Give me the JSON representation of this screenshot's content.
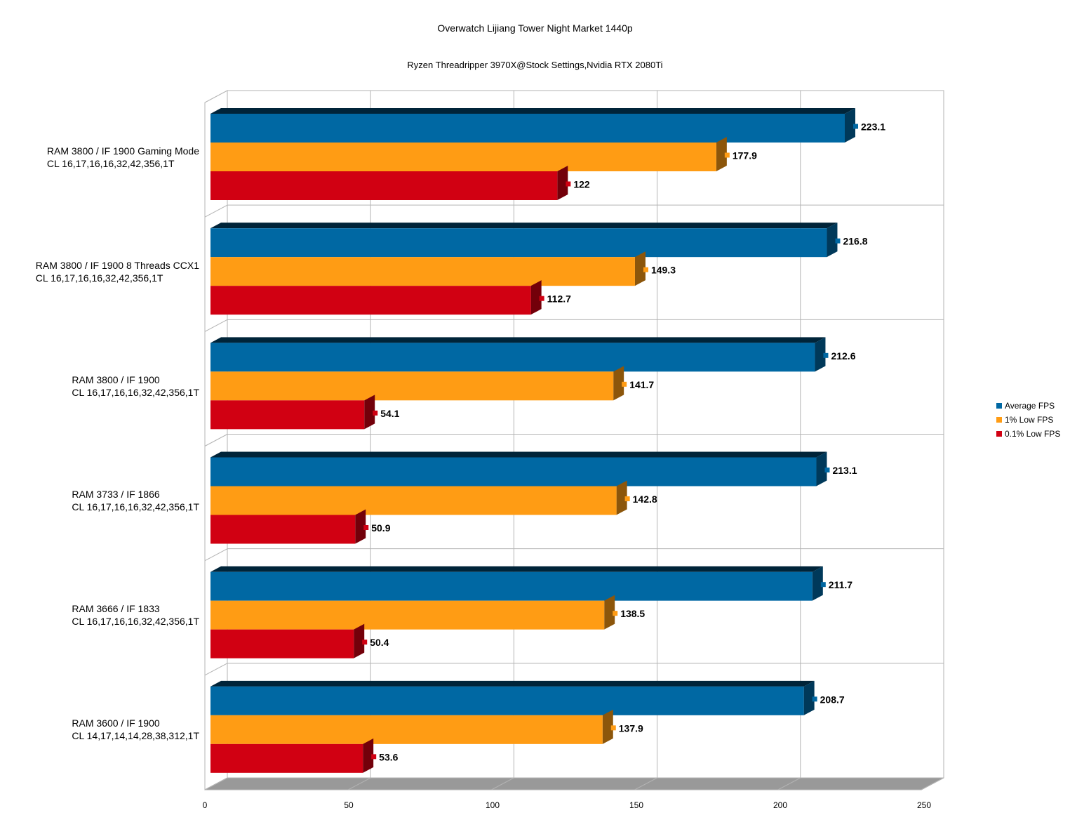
{
  "chart_data": {
    "type": "bar",
    "orientation": "horizontal",
    "title": "Overwatch Lijiang Tower Night Market 1440p",
    "subtitle": "Ryzen Threadripper 3970X@Stock Settings,Nvidia RTX 2080Ti",
    "categories": [
      "RAM 3800 / IF 1900 Gaming Mode\nCL 16,17,16,16,32,42,356,1T",
      "RAM 3800 / IF 1900 8 Threads CCX1\nCL 16,17,16,16,32,42,356,1T",
      "RAM 3800 / IF 1900\nCL 16,17,16,16,32,42,356,1T",
      "RAM 3733 / IF 1866\nCL 16,17,16,16,32,42,356,1T",
      "RAM 3666 / IF 1833\nCL 16,17,16,16,32,42,356,1T",
      "RAM 3600 / IF 1900\nCL 14,17,14,14,28,38,312,1T"
    ],
    "series": [
      {
        "name": "Average FPS",
        "color": "#0068a3",
        "values": [
          223.1,
          216.8,
          212.6,
          213.1,
          211.7,
          208.7
        ]
      },
      {
        "name": "1% Low FPS",
        "color": "#ff9c14",
        "values": [
          177.9,
          149.3,
          141.7,
          142.8,
          138.5,
          137.9
        ]
      },
      {
        "name": "0.1% Low FPS",
        "color": "#d10012",
        "values": [
          122,
          112.7,
          54.1,
          50.9,
          50.4,
          53.6
        ]
      }
    ],
    "value_labels": [
      [
        "223.1",
        "177.9",
        "122"
      ],
      [
        "216.8",
        "149.3",
        "112.7"
      ],
      [
        "212.6",
        "141.7",
        "54.1"
      ],
      [
        "213.1",
        "142.8",
        "50.9"
      ],
      [
        "211.7",
        "138.5",
        "50.4"
      ],
      [
        "208.7",
        "137.9",
        "53.6"
      ]
    ],
    "xticks": [
      "0",
      "50",
      "100",
      "150",
      "200",
      "250"
    ],
    "xlim": [
      0,
      250
    ],
    "grid": true,
    "legend_position": "right"
  }
}
